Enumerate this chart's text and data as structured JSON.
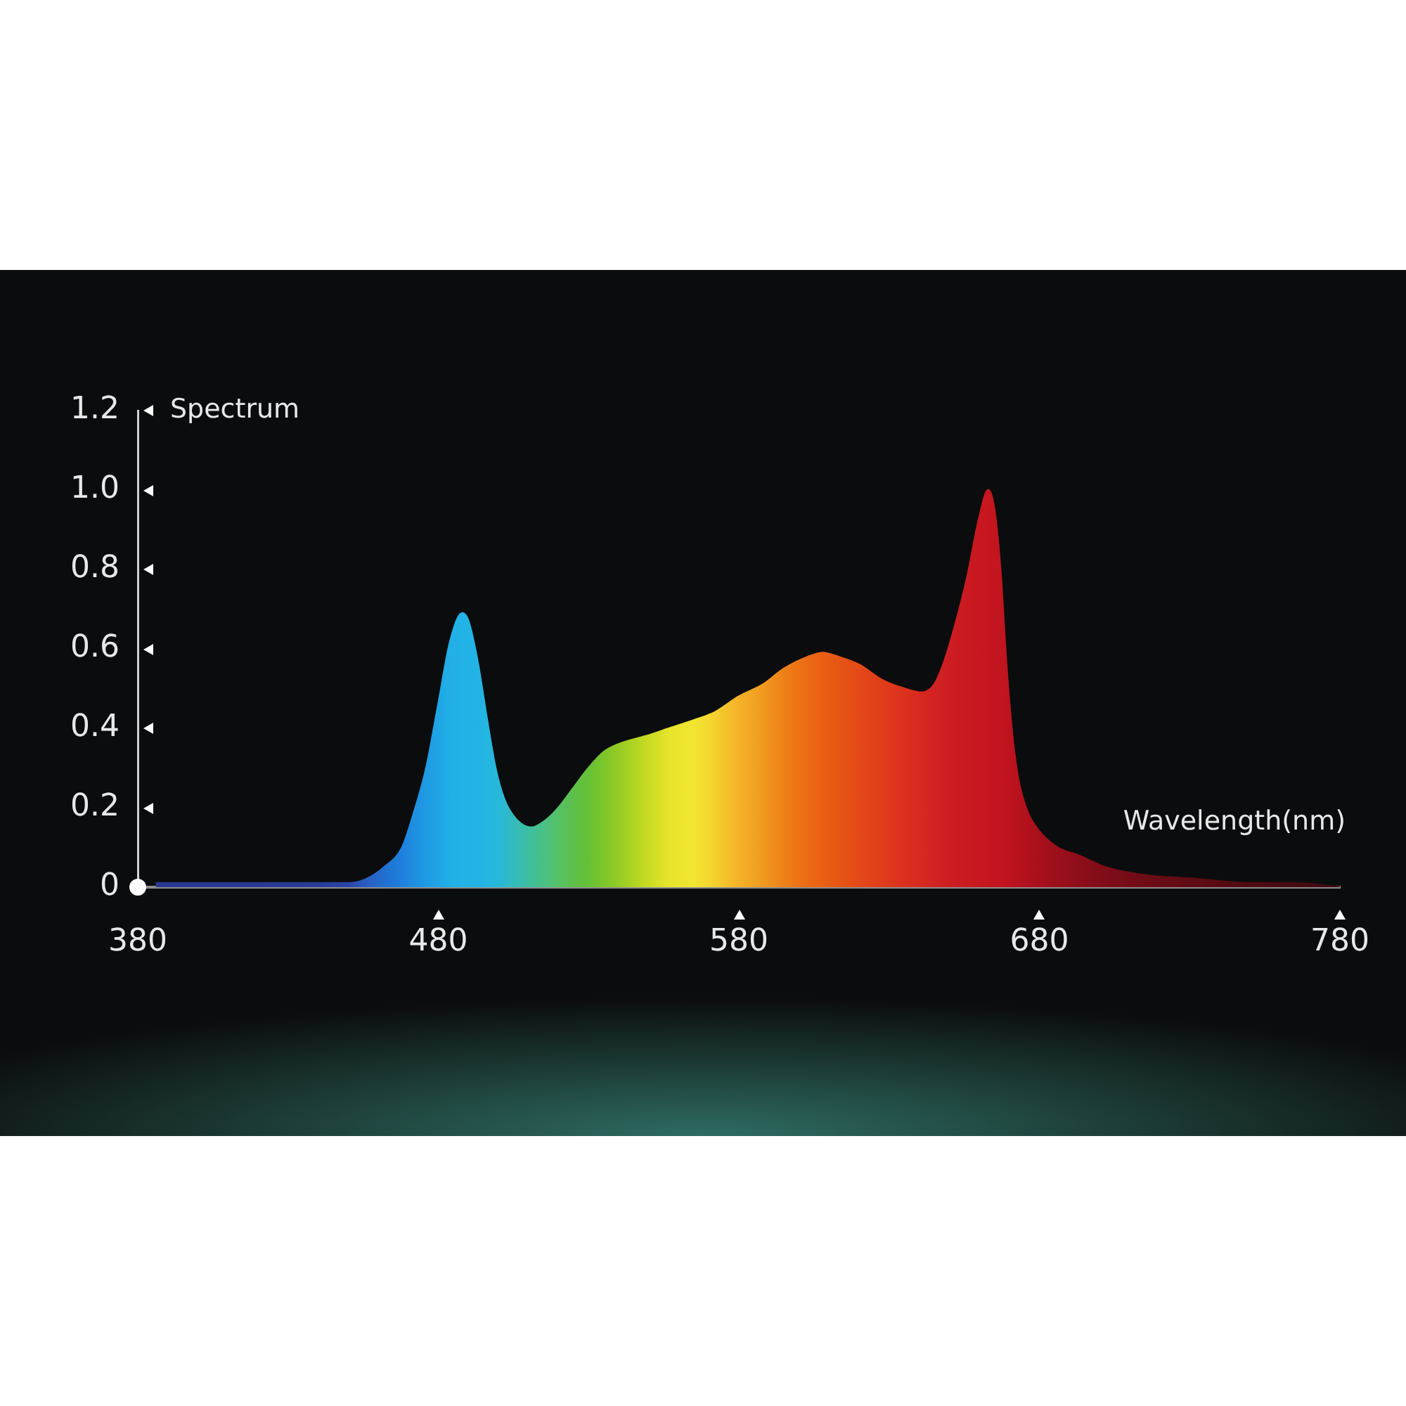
{
  "chart_data": {
    "type": "area",
    "xlabel": "Wavelength(nm)",
    "ylabel": "Spectrum",
    "x": [
      386,
      400,
      420,
      440,
      450,
      456,
      462,
      468,
      472,
      476,
      480,
      484,
      488,
      490,
      493,
      496,
      499,
      502,
      506,
      511,
      516,
      520,
      525,
      530,
      535,
      540,
      549,
      557,
      565,
      572,
      580,
      588,
      595,
      603,
      608,
      613,
      620,
      628,
      635,
      641,
      645,
      648,
      652,
      656,
      660,
      663,
      665,
      667,
      669,
      671,
      673,
      676,
      680,
      686,
      693,
      702,
      715,
      733,
      750,
      765,
      780
    ],
    "values": [
      0.01,
      0.01,
      0.01,
      0.01,
      0.01,
      0.02,
      0.05,
      0.1,
      0.19,
      0.3,
      0.46,
      0.62,
      0.69,
      0.67,
      0.57,
      0.43,
      0.3,
      0.22,
      0.17,
      0.15,
      0.17,
      0.2,
      0.25,
      0.3,
      0.34,
      0.36,
      0.38,
      0.4,
      0.42,
      0.44,
      0.48,
      0.51,
      0.55,
      0.58,
      0.59,
      0.58,
      0.56,
      0.52,
      0.5,
      0.49,
      0.51,
      0.56,
      0.66,
      0.78,
      0.93,
      1.0,
      0.95,
      0.8,
      0.56,
      0.38,
      0.27,
      0.19,
      0.14,
      0.1,
      0.08,
      0.05,
      0.03,
      0.02,
      0.01,
      0.01,
      0
    ],
    "colors": [
      "#28398f",
      "#28398f",
      "#28398f",
      "#283c96",
      "#2a45a8",
      "#2a5cc0",
      "#2070d0",
      "#1e80dd",
      "#1f8fe0",
      "#1e9ae3",
      "#1fa5e5",
      "#22b0e6",
      "#22b2e6",
      "#22b2e6",
      "#23b3e4",
      "#24b5e2",
      "#26b7dc",
      "#2bb9d0",
      "#35bcb8",
      "#3fbf9a",
      "#4bc080",
      "#55c065",
      "#5ec04a",
      "#66c136",
      "#7cc62a",
      "#94cc24",
      "#c4da22",
      "#e8e42c",
      "#f3e632",
      "#f5d02e",
      "#f4b228",
      "#f09a20",
      "#ee8018",
      "#ec6a14",
      "#e95f14",
      "#e65614",
      "#e44918",
      "#e03c1c",
      "#dc301e",
      "#d72820",
      "#d22222",
      "#ce1f22",
      "#cc1c22",
      "#ca1a21",
      "#c8171f",
      "#c6161f",
      "#c4151f",
      "#c2151f",
      "#c0141f",
      "#bc131e",
      "#b8121e",
      "#b0111d",
      "#a8101c",
      "#9c0f1a",
      "#8e0e19",
      "#800d18",
      "#6e0c16",
      "#5e0b14",
      "#4f0a12",
      "#440a10",
      "#3c0a10"
    ],
    "xlim": [
      380,
      780
    ],
    "xticks": [
      380,
      480,
      580,
      680,
      780
    ],
    "ylim": [
      0,
      1.2
    ],
    "yticks": [
      0,
      0.2,
      0.4,
      0.6,
      0.8,
      {
        "value": 1,
        "label": "1.0"
      },
      1.2
    ]
  }
}
